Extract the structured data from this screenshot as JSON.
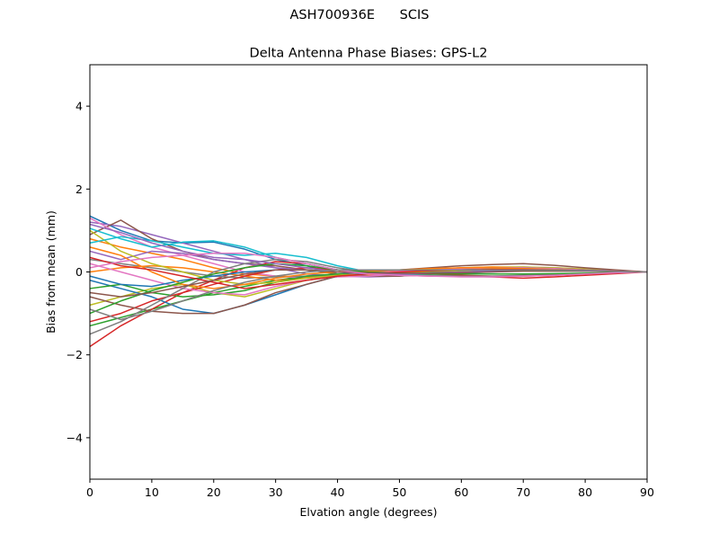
{
  "figure": {
    "suptitle": "ASH700936E      SCIS"
  },
  "chart_data": {
    "type": "line",
    "title": "Delta Antenna Phase Biases: GPS-L2",
    "xlabel": "Elvation angle (degrees)",
    "ylabel": "Bias from mean (mm)",
    "xlim": [
      0,
      90
    ],
    "ylim": [
      -5,
      5
    ],
    "xticks": [
      0,
      10,
      20,
      30,
      40,
      50,
      60,
      70,
      80,
      90
    ],
    "yticks": [
      -4,
      -2,
      0,
      2,
      4
    ],
    "ytick_labels": [
      "−4",
      "−2",
      "0",
      "2",
      "4"
    ],
    "grid": false,
    "legend": "none",
    "x": [
      0,
      5,
      10,
      15,
      20,
      25,
      30,
      35,
      40,
      45,
      50,
      55,
      60,
      65,
      70,
      75,
      80,
      85,
      90
    ],
    "colors": [
      "#1f77b4",
      "#ff7f0e",
      "#2ca02c",
      "#d62728",
      "#9467bd",
      "#8c564b",
      "#e377c2",
      "#7f7f7f",
      "#bcbd22",
      "#17becf"
    ],
    "series": [
      {
        "values": [
          1.35,
          1.0,
          0.75,
          0.7,
          0.72,
          0.55,
          0.3,
          0.15,
          -0.05,
          -0.1,
          -0.08,
          -0.05,
          0.0,
          0.05,
          0.05,
          0.05,
          0.05,
          0.02,
          0.0
        ]
      },
      {
        "values": [
          0.8,
          0.6,
          0.45,
          0.3,
          0.1,
          -0.05,
          -0.1,
          -0.12,
          -0.1,
          -0.08,
          -0.05,
          0.0,
          0.05,
          0.08,
          0.1,
          0.08,
          0.05,
          0.02,
          0.0
        ]
      },
      {
        "values": [
          -1.3,
          -1.1,
          -0.9,
          -0.7,
          -0.5,
          -0.35,
          -0.2,
          -0.1,
          -0.05,
          -0.05,
          -0.02,
          0.0,
          0.05,
          0.05,
          0.05,
          0.05,
          0.03,
          0.01,
          0.0
        ]
      },
      {
        "values": [
          -1.8,
          -1.3,
          -0.9,
          -0.5,
          -0.2,
          0.1,
          0.25,
          0.2,
          0.05,
          -0.05,
          -0.08,
          -0.1,
          -0.1,
          -0.12,
          -0.15,
          -0.12,
          -0.08,
          -0.04,
          0.0
        ]
      },
      {
        "values": [
          1.2,
          1.1,
          0.9,
          0.7,
          0.5,
          0.3,
          0.1,
          -0.05,
          -0.1,
          -0.12,
          -0.1,
          -0.05,
          0.0,
          0.05,
          0.08,
          0.06,
          0.04,
          0.02,
          0.0
        ]
      },
      {
        "values": [
          0.9,
          1.25,
          0.8,
          0.5,
          0.3,
          0.2,
          0.15,
          0.05,
          -0.05,
          -0.1,
          -0.1,
          -0.05,
          0.0,
          0.05,
          0.1,
          0.1,
          0.06,
          0.03,
          0.0
        ]
      },
      {
        "values": [
          1.3,
          0.9,
          0.6,
          0.4,
          0.2,
          0.0,
          -0.1,
          -0.15,
          -0.12,
          -0.1,
          -0.05,
          0.0,
          0.05,
          0.1,
          0.12,
          0.1,
          0.07,
          0.03,
          0.0
        ]
      },
      {
        "values": [
          0.3,
          0.2,
          0.1,
          0.0,
          -0.1,
          -0.15,
          -0.12,
          -0.1,
          -0.08,
          -0.05,
          -0.03,
          0.0,
          0.02,
          0.05,
          0.05,
          0.04,
          0.03,
          0.01,
          0.0
        ]
      },
      {
        "values": [
          -0.8,
          -0.6,
          -0.4,
          -0.3,
          -0.5,
          -0.6,
          -0.4,
          -0.2,
          -0.1,
          -0.05,
          0.0,
          0.05,
          0.1,
          0.12,
          0.12,
          0.1,
          0.07,
          0.03,
          0.0
        ]
      },
      {
        "values": [
          1.05,
          0.8,
          0.6,
          0.72,
          0.75,
          0.6,
          0.35,
          0.2,
          0.05,
          -0.05,
          -0.05,
          -0.02,
          0.0,
          0.02,
          0.04,
          0.04,
          0.03,
          0.01,
          0.0
        ]
      },
      {
        "values": [
          -0.2,
          -0.4,
          -0.6,
          -0.9,
          -1.0,
          -0.8,
          -0.55,
          -0.3,
          -0.1,
          0.0,
          0.02,
          0.05,
          0.08,
          0.1,
          0.1,
          0.08,
          0.05,
          0.02,
          0.0
        ]
      },
      {
        "values": [
          0.0,
          0.1,
          0.15,
          0.1,
          0.0,
          -0.1,
          -0.2,
          -0.15,
          -0.1,
          -0.05,
          0.0,
          0.05,
          0.1,
          0.12,
          0.1,
          0.08,
          0.05,
          0.02,
          0.0
        ]
      },
      {
        "values": [
          -0.4,
          -0.3,
          -0.5,
          -0.6,
          -0.55,
          -0.45,
          -0.25,
          -0.1,
          -0.05,
          0.0,
          0.03,
          0.05,
          0.08,
          0.1,
          0.1,
          0.08,
          0.05,
          0.02,
          0.0
        ]
      },
      {
        "values": [
          -1.2,
          -1.0,
          -0.7,
          -0.5,
          -0.3,
          -0.1,
          0.05,
          0.1,
          0.05,
          0.0,
          -0.02,
          -0.05,
          -0.08,
          -0.1,
          -0.1,
          -0.08,
          -0.05,
          -0.02,
          0.0
        ]
      },
      {
        "values": [
          0.5,
          0.3,
          0.5,
          0.45,
          0.3,
          0.2,
          0.1,
          0.05,
          0.0,
          -0.05,
          -0.05,
          -0.02,
          0.0,
          0.05,
          0.08,
          0.06,
          0.04,
          0.02,
          0.0
        ]
      },
      {
        "values": [
          -0.6,
          -0.8,
          -0.95,
          -1.0,
          -1.0,
          -0.8,
          -0.5,
          -0.3,
          -0.1,
          0.0,
          0.05,
          0.1,
          0.15,
          0.18,
          0.2,
          0.16,
          0.1,
          0.05,
          0.0
        ]
      },
      {
        "values": [
          0.2,
          0.0,
          -0.2,
          -0.4,
          -0.5,
          -0.55,
          -0.35,
          -0.2,
          -0.1,
          -0.02,
          0.02,
          0.05,
          0.08,
          0.1,
          0.1,
          0.08,
          0.05,
          0.02,
          0.0
        ]
      },
      {
        "values": [
          -1.5,
          -1.2,
          -0.8,
          -0.4,
          0.0,
          0.2,
          0.3,
          0.25,
          0.1,
          0.0,
          -0.05,
          -0.08,
          -0.1,
          -0.1,
          -0.08,
          -0.06,
          -0.04,
          -0.02,
          0.0
        ]
      },
      {
        "values": [
          1.0,
          0.5,
          0.2,
          0.0,
          -0.2,
          -0.3,
          -0.25,
          -0.15,
          -0.08,
          -0.05,
          -0.02,
          0.0,
          0.03,
          0.06,
          0.08,
          0.06,
          0.04,
          0.02,
          0.0
        ]
      },
      {
        "values": [
          0.7,
          0.85,
          0.75,
          0.6,
          0.45,
          0.4,
          0.45,
          0.35,
          0.15,
          0.0,
          -0.05,
          -0.05,
          -0.03,
          0.0,
          0.03,
          0.03,
          0.02,
          0.01,
          0.0
        ]
      },
      {
        "values": [
          -0.1,
          -0.3,
          -0.35,
          -0.2,
          -0.1,
          0.0,
          0.05,
          0.05,
          0.0,
          -0.05,
          -0.05,
          -0.02,
          0.0,
          0.02,
          0.04,
          0.04,
          0.03,
          0.01,
          0.0
        ]
      },
      {
        "values": [
          0.6,
          0.4,
          0.0,
          -0.3,
          -0.4,
          -0.3,
          -0.15,
          -0.05,
          0.0,
          0.02,
          0.05,
          0.08,
          0.1,
          0.1,
          0.08,
          0.06,
          0.04,
          0.02,
          0.0
        ]
      },
      {
        "values": [
          -1.0,
          -0.7,
          -0.45,
          -0.25,
          -0.05,
          0.1,
          0.2,
          0.15,
          0.05,
          0.0,
          -0.03,
          -0.05,
          -0.05,
          -0.05,
          -0.05,
          -0.04,
          -0.03,
          -0.01,
          0.0
        ]
      },
      {
        "values": [
          0.35,
          0.15,
          0.05,
          -0.1,
          -0.25,
          -0.4,
          -0.3,
          -0.2,
          -0.1,
          -0.05,
          0.0,
          0.03,
          0.05,
          0.06,
          0.06,
          0.05,
          0.03,
          0.01,
          0.0
        ]
      },
      {
        "values": [
          1.15,
          0.95,
          0.7,
          0.5,
          0.35,
          0.3,
          0.2,
          0.1,
          0.0,
          -0.05,
          -0.05,
          -0.03,
          0.0,
          0.03,
          0.05,
          0.05,
          0.04,
          0.02,
          0.0
        ]
      },
      {
        "values": [
          -0.5,
          -0.6,
          -0.5,
          -0.35,
          -0.2,
          -0.05,
          0.05,
          0.05,
          0.0,
          -0.02,
          -0.03,
          -0.03,
          -0.02,
          0.0,
          0.02,
          0.02,
          0.02,
          0.01,
          0.0
        ]
      },
      {
        "values": [
          0.1,
          0.25,
          0.35,
          0.4,
          0.45,
          0.45,
          0.35,
          0.2,
          0.05,
          -0.05,
          -0.08,
          -0.1,
          -0.12,
          -0.12,
          -0.1,
          -0.08,
          -0.05,
          -0.02,
          0.0
        ]
      },
      {
        "values": [
          -0.9,
          -1.15,
          -0.95,
          -0.7,
          -0.45,
          -0.25,
          -0.1,
          0.0,
          0.05,
          0.05,
          0.05,
          0.05,
          0.05,
          0.05,
          0.05,
          0.04,
          0.03,
          0.01,
          0.0
        ]
      }
    ]
  }
}
